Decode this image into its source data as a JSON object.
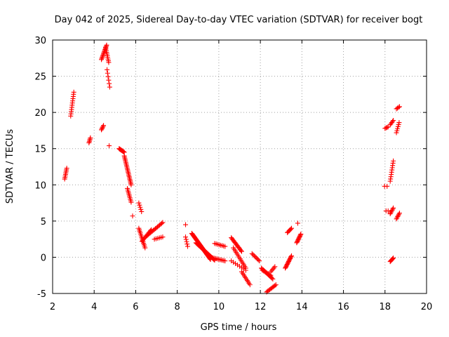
{
  "chart_data": {
    "type": "scatter",
    "title": "Day 042 of 2025, Sidereal Day-to-day VTEC variation (SDTVAR) for receiver bogt",
    "xlabel": "GPS time / hours",
    "ylabel": "SDTVAR / TECUs",
    "xlim": [
      2,
      20
    ],
    "ylim": [
      -5,
      30
    ],
    "xticks": [
      "2",
      "4",
      "6",
      "8",
      "10",
      "12",
      "14",
      "16",
      "18",
      "20"
    ],
    "yticks": [
      "-5",
      "0",
      "5",
      "10",
      "15",
      "20",
      "25",
      "30"
    ],
    "grid": true,
    "marker": "plus",
    "color": "#ff0000",
    "series": [
      {
        "name": "SDTVAR",
        "segments": [
          {
            "x": [
              2.58,
              2.68
            ],
            "y": [
              10.8,
              12.3
            ],
            "n": 8
          },
          {
            "x": [
              2.87,
              3.02
            ],
            "y": [
              19.5,
              22.8
            ],
            "n": 12
          },
          {
            "x": [
              3.75,
              3.82
            ],
            "y": [
              15.8,
              16.5
            ],
            "n": 5
          },
          {
            "x": [
              4.35,
              4.45
            ],
            "y": [
              17.6,
              18.2
            ],
            "n": 5
          },
          {
            "x": [
              4.35,
              4.6
            ],
            "y": [
              27.3,
              29.3
            ],
            "n": 14
          },
          {
            "x": [
              4.55,
              4.7
            ],
            "y": [
              29.0,
              26.9
            ],
            "n": 10
          },
          {
            "x": [
              4.62,
              4.75
            ],
            "y": [
              25.9,
              23.5
            ],
            "n": 6
          },
          {
            "x": [
              4.72,
              4.75
            ],
            "y": [
              15.4,
              15.4
            ],
            "n": 1
          },
          {
            "x": [
              5.2,
              5.45
            ],
            "y": [
              15.0,
              14.5
            ],
            "n": 10
          },
          {
            "x": [
              5.45,
              5.78
            ],
            "y": [
              14.0,
              10.0
            ],
            "n": 22
          },
          {
            "x": [
              5.6,
              5.78
            ],
            "y": [
              9.5,
              7.6
            ],
            "n": 10
          },
          {
            "x": [
              5.85,
              5.9
            ],
            "y": [
              5.7,
              5.7
            ],
            "n": 1
          },
          {
            "x": [
              6.15,
              6.28
            ],
            "y": [
              7.5,
              6.3
            ],
            "n": 5
          },
          {
            "x": [
              6.15,
              6.45
            ],
            "y": [
              4.0,
              1.3
            ],
            "n": 14
          },
          {
            "x": [
              6.3,
              6.75
            ],
            "y": [
              2.2,
              3.8
            ],
            "n": 12
          },
          {
            "x": [
              6.55,
              7.3
            ],
            "y": [
              3.0,
              4.8
            ],
            "n": 16
          },
          {
            "x": [
              6.9,
              7.3
            ],
            "y": [
              2.5,
              2.8
            ],
            "n": 6
          },
          {
            "x": [
              8.4,
              8.45
            ],
            "y": [
              4.5,
              4.5
            ],
            "n": 1
          },
          {
            "x": [
              8.4,
              8.5
            ],
            "y": [
              2.8,
              1.5
            ],
            "n": 5
          },
          {
            "x": [
              8.7,
              9.6
            ],
            "y": [
              3.3,
              -0.3
            ],
            "n": 40
          },
          {
            "x": [
              8.9,
              9.8
            ],
            "y": [
              2.0,
              -0.4
            ],
            "n": 30
          },
          {
            "x": [
              9.8,
              10.3
            ],
            "y": [
              1.9,
              1.5
            ],
            "n": 8
          },
          {
            "x": [
              9.6,
              10.3
            ],
            "y": [
              0.0,
              -0.5
            ],
            "n": 12
          },
          {
            "x": [
              10.6,
              11.1
            ],
            "y": [
              2.7,
              0.8
            ],
            "n": 15
          },
          {
            "x": [
              10.7,
              11.3
            ],
            "y": [
              1.3,
              -1.5
            ],
            "n": 14
          },
          {
            "x": [
              10.6,
              11.3
            ],
            "y": [
              -0.5,
              -1.8
            ],
            "n": 8
          },
          {
            "x": [
              11.1,
              11.5
            ],
            "y": [
              -2.0,
              -3.8
            ],
            "n": 10
          },
          {
            "x": [
              11.6,
              11.95
            ],
            "y": [
              0.5,
              -0.5
            ],
            "n": 8
          },
          {
            "x": [
              12.05,
              12.6
            ],
            "y": [
              -1.5,
              -3.0
            ],
            "n": 14
          },
          {
            "x": [
              12.1,
              12.5
            ],
            "y": [
              -1.8,
              -2.5
            ],
            "n": 8
          },
          {
            "x": [
              12.3,
              12.75
            ],
            "y": [
              -4.8,
              -3.8
            ],
            "n": 10
          },
          {
            "x": [
              12.5,
              12.7
            ],
            "y": [
              -2.0,
              -1.3
            ],
            "n": 5
          },
          {
            "x": [
              13.2,
              13.5
            ],
            "y": [
              -1.5,
              0.2
            ],
            "n": 14
          },
          {
            "x": [
              13.3,
              13.5
            ],
            "y": [
              3.4,
              4.0
            ],
            "n": 6
          },
          {
            "x": [
              13.75,
              13.95
            ],
            "y": [
              2.0,
              3.2
            ],
            "n": 10
          },
          {
            "x": [
              13.8,
              13.85
            ],
            "y": [
              4.7,
              4.7
            ],
            "n": 1
          },
          {
            "x": [
              17.98,
              18.1
            ],
            "y": [
              9.8,
              9.8
            ],
            "n": 2
          },
          {
            "x": [
              18.0,
              18.15
            ],
            "y": [
              17.8,
              18.0
            ],
            "n": 4
          },
          {
            "x": [
              18.25,
              18.4
            ],
            "y": [
              18.3,
              18.9
            ],
            "n": 5
          },
          {
            "x": [
              18.25,
              18.4
            ],
            "y": [
              10.5,
              13.3
            ],
            "n": 10
          },
          {
            "x": [
              18.05,
              18.15
            ],
            "y": [
              6.4,
              6.4
            ],
            "n": 2
          },
          {
            "x": [
              18.25,
              18.4
            ],
            "y": [
              6.0,
              6.8
            ],
            "n": 6
          },
          {
            "x": [
              18.25,
              18.4
            ],
            "y": [
              -0.6,
              -0.1
            ],
            "n": 6
          },
          {
            "x": [
              18.55,
              18.68
            ],
            "y": [
              17.2,
              18.6
            ],
            "n": 6
          },
          {
            "x": [
              18.55,
              18.7
            ],
            "y": [
              20.5,
              20.8
            ],
            "n": 4
          },
          {
            "x": [
              18.55,
              18.7
            ],
            "y": [
              5.3,
              6.1
            ],
            "n": 6
          }
        ]
      }
    ]
  }
}
